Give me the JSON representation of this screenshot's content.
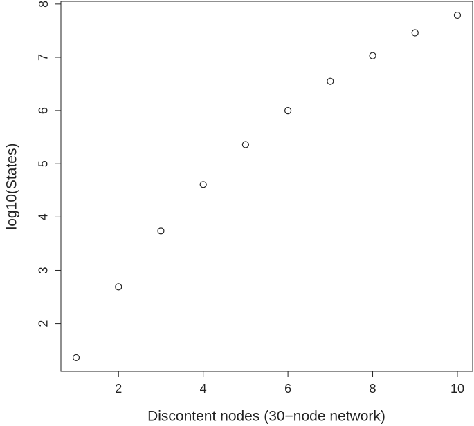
{
  "chart_data": {
    "type": "scatter",
    "x_label": "Discontent nodes (30−node network)",
    "y_label": "log10(States)",
    "x": [
      1,
      2,
      3,
      4,
      5,
      6,
      7,
      8,
      9,
      10
    ],
    "values": [
      1.36,
      2.69,
      3.74,
      4.61,
      5.36,
      6.0,
      6.55,
      7.03,
      7.46,
      7.79
    ],
    "xlim": [
      0.64,
      10.36
    ],
    "ylim": [
      1.1,
      8.05
    ],
    "xticks": [
      2,
      4,
      6,
      8,
      10
    ],
    "yticks": [
      2,
      3,
      4,
      5,
      6,
      7,
      8
    ],
    "color": "#222222"
  }
}
